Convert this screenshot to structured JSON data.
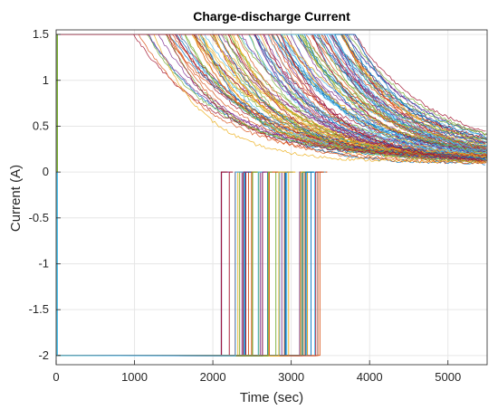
{
  "chart_data": {
    "type": "line",
    "title": "Charge-discharge Current",
    "xlabel": "Time (sec)",
    "ylabel": "Current (A)",
    "xlim": [
      0,
      5500
    ],
    "ylim": [
      -2.1,
      1.55
    ],
    "xticks": [
      0,
      1000,
      2000,
      3000,
      4000,
      5000
    ],
    "yticks": [
      1.5,
      1,
      0.5,
      0,
      -0.5,
      -1,
      -1.5,
      -2
    ],
    "xtick_labels": [
      "0",
      "1000",
      "2000",
      "3000",
      "4000",
      "5000"
    ],
    "ytick_labels": [
      "1.5",
      "1",
      "0.5",
      "0",
      "-0.5",
      "-1",
      "-1.5",
      "-2"
    ],
    "grid": true,
    "legend": "none",
    "palette": [
      "#0072BD",
      "#D95319",
      "#EDB120",
      "#7E2F8E",
      "#77AC30",
      "#4DBEEE",
      "#A2142F"
    ],
    "description_values": {
      "charge_current_max": 1.5,
      "discharge_current": -2,
      "rest_current": 0,
      "discharge_end_time_range": [
        2100,
        3650
      ],
      "charge_cv_start_time_range": [
        950,
        3850
      ],
      "charge_tail_current_at_end": [
        0.15,
        0.3
      ]
    }
  }
}
